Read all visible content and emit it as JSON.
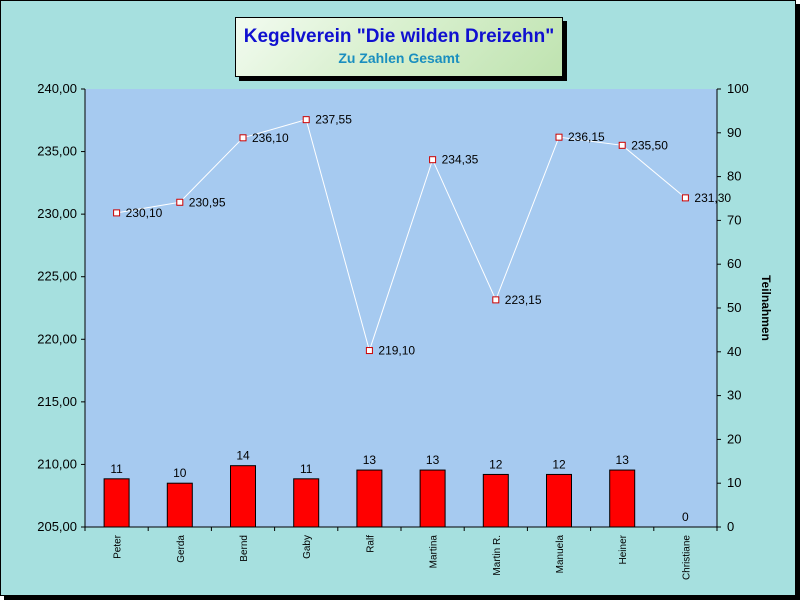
{
  "title": "Kegelverein \"Die wilden Dreizehn\"",
  "subtitle": "Zu Zahlen Gesamt",
  "chart_data": {
    "type": "bar+line",
    "categories": [
      "Peter",
      "Gerda",
      "Bernd",
      "Gaby",
      "Ralf",
      "Martina",
      "Martin R.",
      "Manuela",
      "Heiner",
      "Christiane"
    ],
    "series": [
      {
        "type": "line",
        "axis": "left",
        "values": [
          230.1,
          230.95,
          236.1,
          237.55,
          219.1,
          234.35,
          223.15,
          236.15,
          235.5,
          231.3
        ],
        "labels": [
          "230,10",
          "230,95",
          "236,10",
          "237,55",
          "219,10",
          "234,35",
          "223,15",
          "236,15",
          "235,50",
          "231,30"
        ],
        "color": "#ffffff",
        "marker_color": "#cc0000"
      },
      {
        "type": "bar",
        "axis": "right",
        "name": "Teilnahmen",
        "values": [
          11,
          10,
          14,
          11,
          13,
          13,
          12,
          12,
          13,
          0
        ],
        "labels": [
          "11",
          "10",
          "14",
          "11",
          "13",
          "13",
          "12",
          "12",
          "13",
          "0"
        ],
        "color": "#ff0000"
      }
    ],
    "y_left": {
      "lim": [
        205,
        240
      ],
      "ticks": [
        "205,00",
        "210,00",
        "215,00",
        "220,00",
        "225,00",
        "230,00",
        "235,00",
        "240,00"
      ]
    },
    "y_right": {
      "label": "Teilnahmen",
      "lim": [
        0,
        100
      ],
      "ticks": [
        "0",
        "10",
        "20",
        "30",
        "40",
        "50",
        "60",
        "70",
        "80",
        "90",
        "100"
      ]
    },
    "plot_background": "#a6caf0",
    "grid": false
  }
}
